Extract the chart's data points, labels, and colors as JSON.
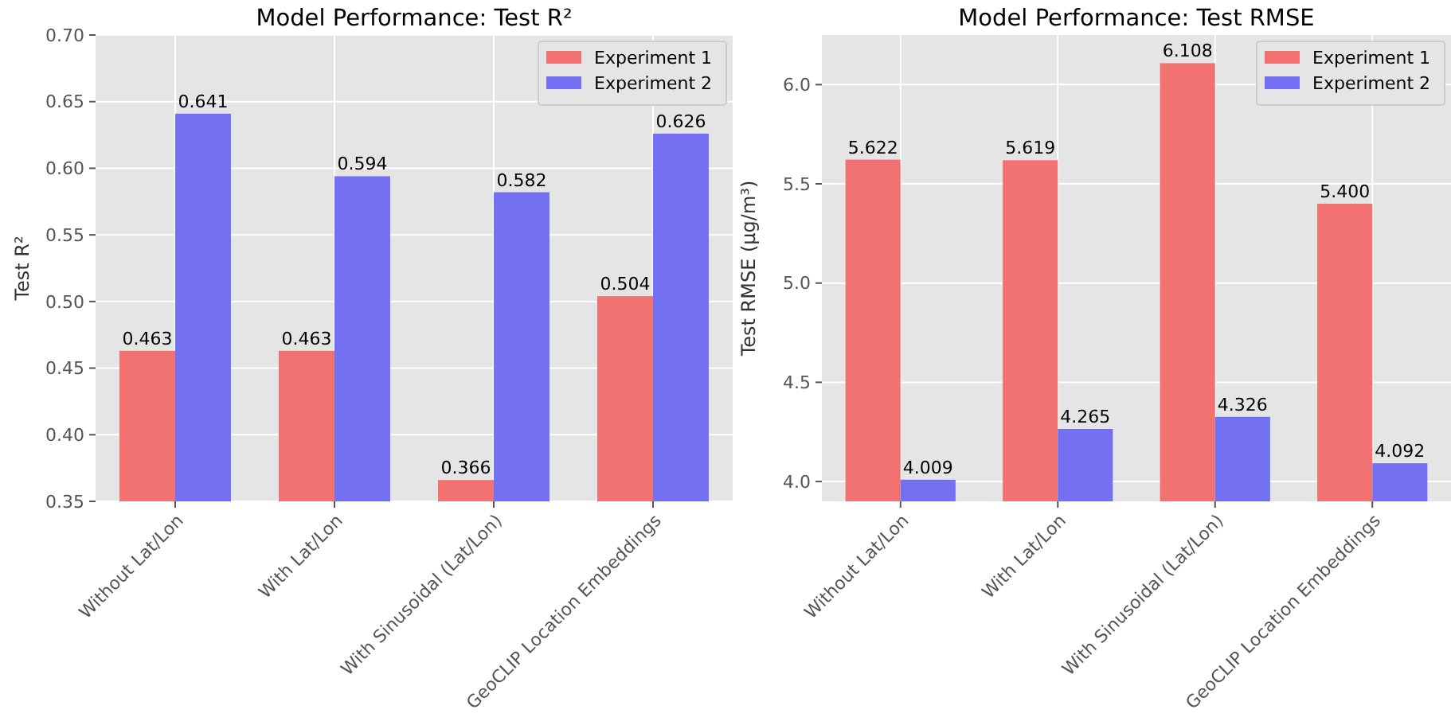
{
  "chart_data": [
    {
      "type": "bar",
      "title": "Model Performance: Test R²",
      "ylabel": "Test R²",
      "categories": [
        "Without Lat/Lon",
        "With Lat/Lon",
        "With Sinusoidal (Lat/Lon)",
        "GeoCLIP Location Embeddings"
      ],
      "series": [
        {
          "name": "Experiment 1",
          "color": "#f27171",
          "values": [
            0.463,
            0.463,
            0.366,
            0.504
          ]
        },
        {
          "name": "Experiment 2",
          "color": "#7371f2",
          "values": [
            0.641,
            0.594,
            0.582,
            0.626
          ]
        }
      ],
      "ylim": [
        0.35,
        0.7
      ],
      "yticks": [
        {
          "value": 0.35,
          "label": "0.35"
        },
        {
          "value": 0.4,
          "label": "0.40"
        },
        {
          "value": 0.45,
          "label": "0.45"
        },
        {
          "value": 0.5,
          "label": "0.50"
        },
        {
          "value": 0.55,
          "label": "0.55"
        },
        {
          "value": 0.6,
          "label": "0.60"
        },
        {
          "value": 0.65,
          "label": "0.65"
        },
        {
          "value": 0.7,
          "label": "0.70"
        }
      ],
      "grid": true,
      "legend": "top right",
      "data_labels": true
    },
    {
      "type": "bar",
      "title": "Model Performance: Test RMSE",
      "ylabel": "Test RMSE (µg/m³)",
      "categories": [
        "Without Lat/Lon",
        "With Lat/Lon",
        "With Sinusoidal (Lat/Lon)",
        "GeoCLIP Location Embeddings"
      ],
      "series": [
        {
          "name": "Experiment 1",
          "color": "#f27171",
          "values": [
            5.622,
            5.619,
            6.108,
            5.4
          ]
        },
        {
          "name": "Experiment 2",
          "color": "#7371f2",
          "values": [
            4.009,
            4.265,
            4.326,
            4.092
          ]
        }
      ],
      "value_labels": [
        [
          "5.622",
          "5.619",
          "6.108",
          "5.400"
        ],
        [
          "4.009",
          "4.265",
          "4.326",
          "4.092"
        ]
      ],
      "ylim": [
        3.9,
        6.25
      ],
      "yticks": [
        {
          "value": 4,
          "label": "4.0"
        },
        {
          "value": 4.5,
          "label": "4.5"
        },
        {
          "value": 5,
          "label": "5.0"
        },
        {
          "value": 5.5,
          "label": "5.5"
        },
        {
          "value": 6,
          "label": "6.0"
        }
      ],
      "grid": true,
      "legend": "top right"
    }
  ]
}
